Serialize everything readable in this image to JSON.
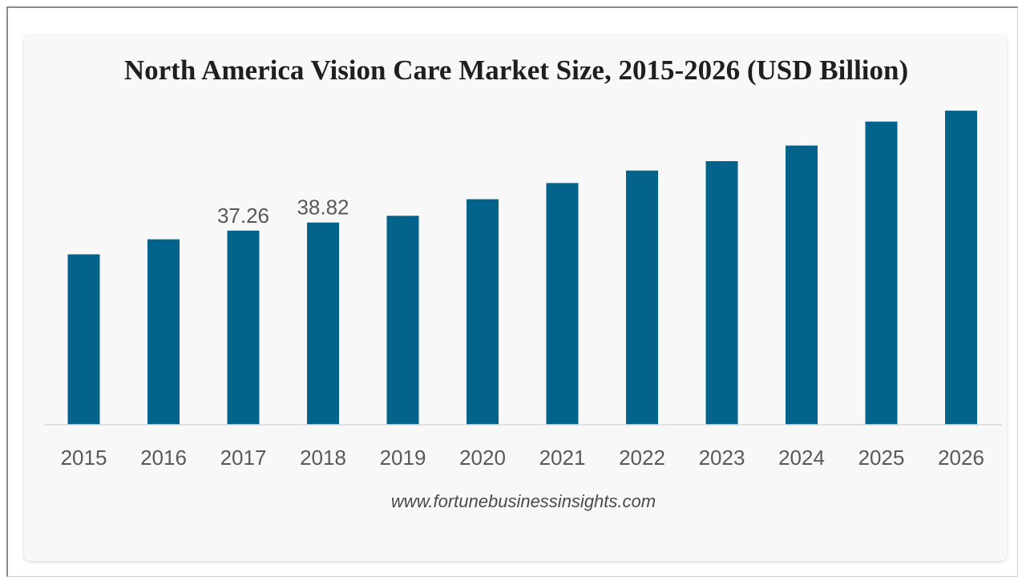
{
  "chart_data": {
    "type": "bar",
    "title": "North America Vision Care Market Size, 2015-2026 (USD Billion)",
    "categories": [
      "2015",
      "2016",
      "2017",
      "2018",
      "2019",
      "2020",
      "2021",
      "2022",
      "2023",
      "2024",
      "2025",
      "2026"
    ],
    "values": [
      32.7,
      35.6,
      37.26,
      38.82,
      40.1,
      43.3,
      46.4,
      48.8,
      50.6,
      53.6,
      58.2,
      60.3
    ],
    "data_labels": [
      {
        "category": "2017",
        "text": "37.26"
      },
      {
        "category": "2018",
        "text": "38.82"
      }
    ],
    "xlabel": "",
    "ylabel": "",
    "ylim": [
      0,
      62
    ],
    "grid": false,
    "legend": "none",
    "bar_color": "#03638a"
  },
  "source": "www.fortunebusinessinsights.com"
}
